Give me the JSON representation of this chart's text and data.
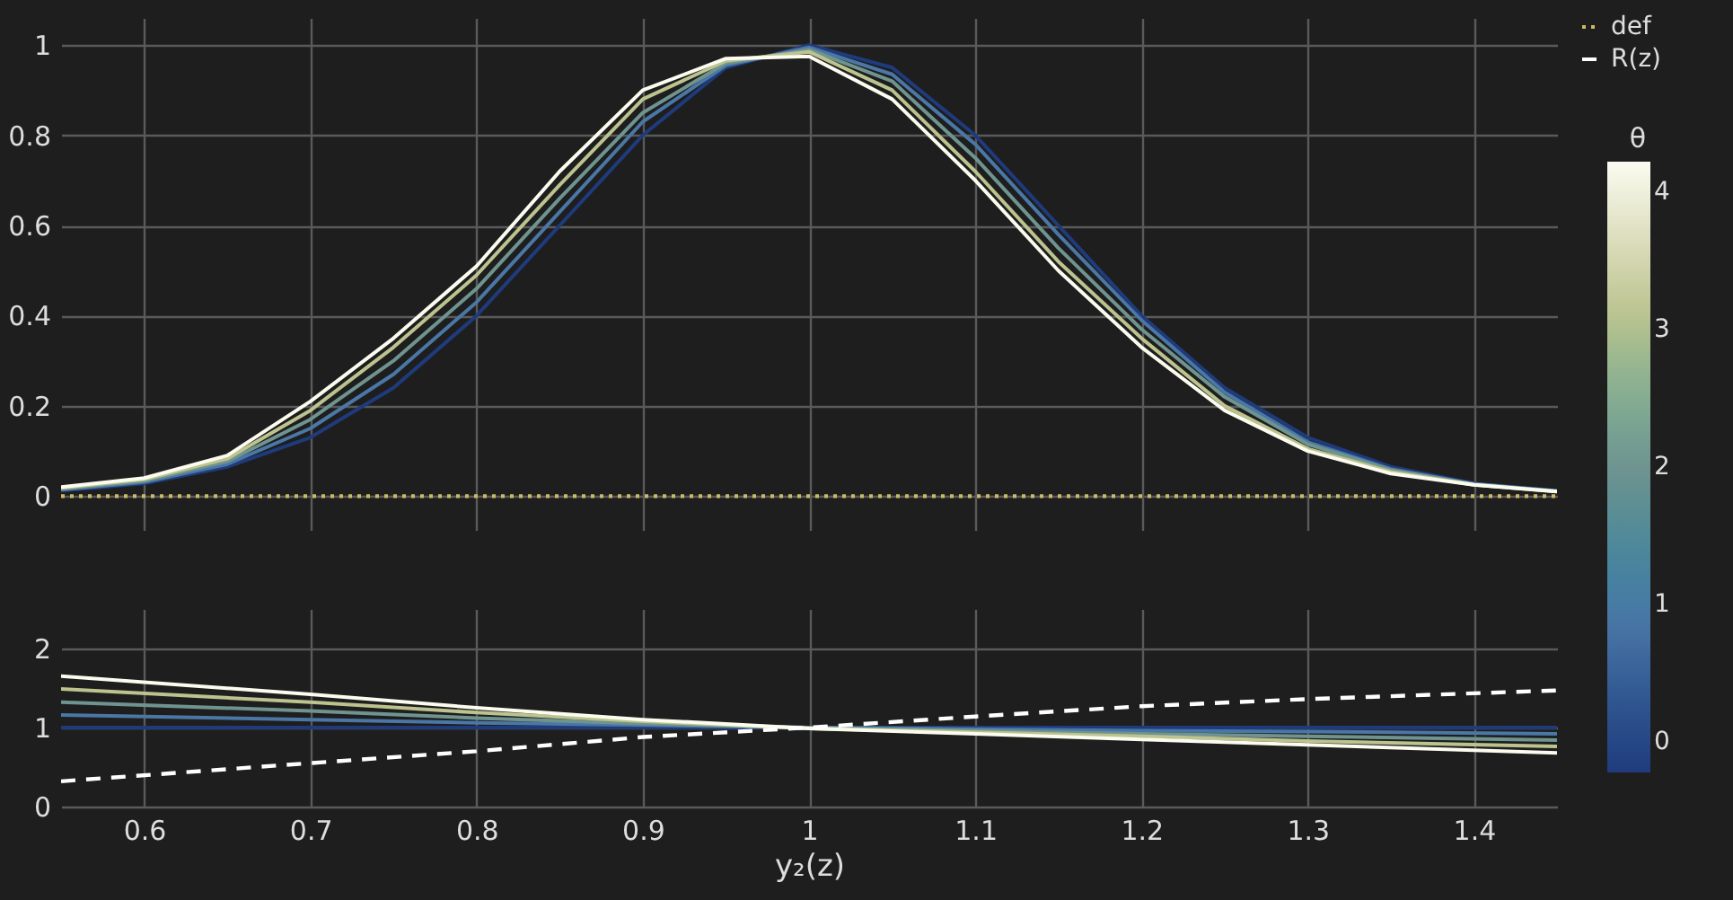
{
  "chart_data": [
    {
      "type": "line",
      "x": [
        0.55,
        0.6,
        0.65,
        0.7,
        0.75,
        0.8,
        0.85,
        0.9,
        0.95,
        1.0,
        1.05,
        1.1,
        1.15,
        1.2,
        1.25,
        1.3,
        1.35,
        1.4,
        1.45
      ],
      "series": [
        {
          "color": "#1f3b7c",
          "values": [
            0.012,
            0.028,
            0.065,
            0.13,
            0.24,
            0.4,
            0.6,
            0.8,
            0.95,
            1.0,
            0.95,
            0.8,
            0.6,
            0.4,
            0.24,
            0.13,
            0.065,
            0.028,
            0.012
          ]
        },
        {
          "color": "#4a77a6",
          "values": [
            0.014,
            0.031,
            0.071,
            0.15,
            0.27,
            0.43,
            0.63,
            0.83,
            0.955,
            0.995,
            0.935,
            0.78,
            0.58,
            0.39,
            0.23,
            0.12,
            0.06,
            0.027,
            0.011
          ]
        },
        {
          "color": "#6f9490",
          "values": [
            0.016,
            0.034,
            0.077,
            0.17,
            0.3,
            0.46,
            0.66,
            0.85,
            0.96,
            0.99,
            0.92,
            0.75,
            0.55,
            0.37,
            0.22,
            0.115,
            0.058,
            0.026,
            0.011
          ]
        },
        {
          "color": "#bcc38e",
          "values": [
            0.018,
            0.037,
            0.083,
            0.19,
            0.33,
            0.49,
            0.69,
            0.88,
            0.965,
            0.985,
            0.9,
            0.72,
            0.52,
            0.35,
            0.2,
            0.105,
            0.054,
            0.025,
            0.01
          ]
        },
        {
          "color": "#fbfbf0",
          "values": [
            0.02,
            0.04,
            0.09,
            0.21,
            0.35,
            0.51,
            0.72,
            0.9,
            0.97,
            0.975,
            0.88,
            0.7,
            0.5,
            0.33,
            0.19,
            0.1,
            0.05,
            0.025,
            0.01
          ]
        },
        {
          "name": "def",
          "color": "#cdb865",
          "line_style": "dotted",
          "x": [
            0.55,
            1.45
          ],
          "values": [
            0,
            0
          ]
        }
      ],
      "xlim": [
        0.55,
        1.45
      ],
      "xticks": [
        0.6,
        0.7,
        0.8,
        0.9,
        1,
        1.1,
        1.2,
        1.3,
        1.4
      ],
      "ylim": [
        -0.075,
        1.06
      ],
      "yticks": [
        0,
        0.2,
        0.4,
        0.6,
        0.8,
        1
      ],
      "tick_labels": "y",
      "grid": true,
      "legend": "top right",
      "clabel": "θ",
      "clim": [
        -0.22,
        4.22
      ],
      "cticks": [
        0,
        1,
        2,
        3,
        4
      ]
    },
    {
      "type": "line",
      "xlabel": "y₂(z)",
      "x": [
        0.55,
        0.7,
        0.8,
        0.9,
        1.0,
        1.1,
        1.2,
        1.3,
        1.45
      ],
      "series": [
        {
          "color": "#1f3b7c",
          "values": [
            1,
            1,
            1,
            1,
            1,
            1,
            1,
            1,
            1
          ]
        },
        {
          "color": "#4a77a6",
          "values": [
            1.16,
            1.1,
            1.06,
            1.03,
            1.0,
            0.98,
            0.96,
            0.95,
            0.92
          ]
        },
        {
          "color": "#6f9490",
          "values": [
            1.32,
            1.21,
            1.12,
            1.05,
            1.0,
            0.96,
            0.92,
            0.89,
            0.84
          ]
        },
        {
          "color": "#bcc38e",
          "values": [
            1.49,
            1.32,
            1.19,
            1.08,
            0.99,
            0.94,
            0.89,
            0.83,
            0.76
          ]
        },
        {
          "color": "#fbfbf0",
          "values": [
            1.65,
            1.42,
            1.25,
            1.1,
            0.99,
            0.92,
            0.85,
            0.78,
            0.68
          ]
        },
        {
          "name": "R(z)",
          "color": "#ffffff",
          "line_style": "dashed",
          "values": [
            0.32,
            0.55,
            0.7,
            0.88,
            1.0,
            1.14,
            1.27,
            1.36,
            1.47
          ]
        }
      ],
      "xlim": [
        0.55,
        1.45
      ],
      "xticks": [
        0.6,
        0.7,
        0.8,
        0.9,
        1,
        1.1,
        1.2,
        1.3,
        1.4
      ],
      "ylim": [
        0,
        2.5
      ],
      "yticks": [
        0,
        1,
        2
      ],
      "grid": true,
      "legend": "top right"
    }
  ]
}
